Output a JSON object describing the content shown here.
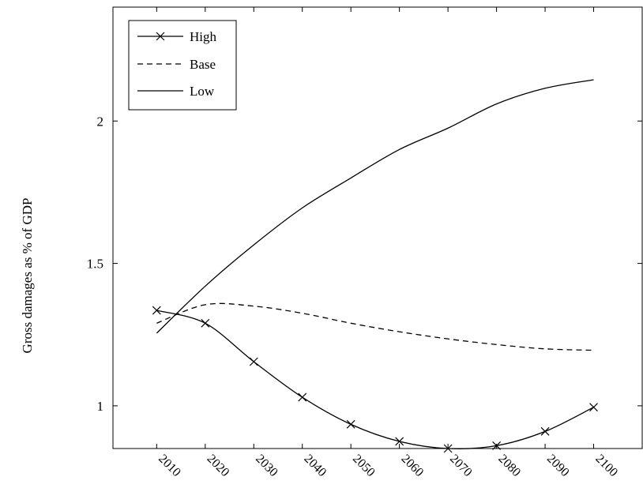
{
  "chart_data": {
    "type": "line",
    "title": "",
    "xlabel": "",
    "ylabel": "Gross damages as % of GDP",
    "xlim": [
      2001,
      2110
    ],
    "ylim": [
      0.85,
      2.4
    ],
    "x_ticks": [
      2010,
      2020,
      2030,
      2040,
      2050,
      2060,
      2070,
      2080,
      2090,
      2100
    ],
    "y_ticks": [
      1,
      1.5,
      2
    ],
    "y_tick_labels": [
      "1",
      "1.5",
      "2"
    ],
    "grid": false,
    "legend_position": "top-left",
    "x": [
      2010,
      2020,
      2030,
      2040,
      2050,
      2060,
      2070,
      2080,
      2090,
      2100
    ],
    "series": [
      {
        "name": "High",
        "style": "solid-cross",
        "values": [
          1.335,
          1.29,
          1.155,
          1.03,
          0.935,
          0.875,
          0.85,
          0.86,
          0.91,
          0.995
        ]
      },
      {
        "name": "Base",
        "style": "dashed",
        "values": [
          1.29,
          1.355,
          1.35,
          1.325,
          1.29,
          1.26,
          1.235,
          1.215,
          1.2,
          1.195
        ]
      },
      {
        "name": "Low",
        "style": "solid",
        "values": [
          1.255,
          1.42,
          1.565,
          1.695,
          1.8,
          1.9,
          1.975,
          2.06,
          2.115,
          2.145
        ]
      }
    ]
  }
}
